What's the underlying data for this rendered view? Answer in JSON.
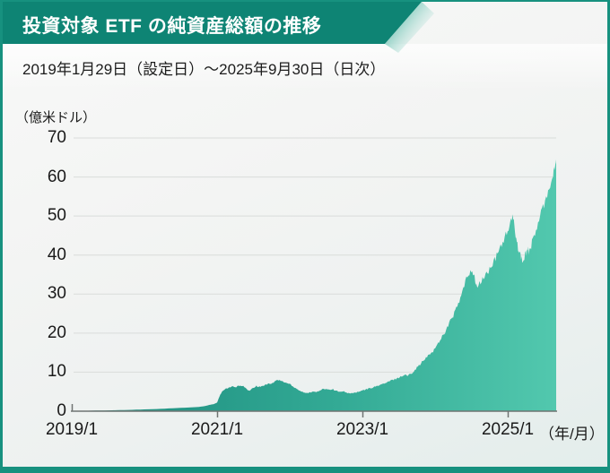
{
  "header": {
    "title": "投資対象 ETF の純資産総額の推移"
  },
  "subtitle": "2019年1月29日（設定日）〜2025年9月30日（日次）",
  "colors": {
    "banner_teal": "#0e8474",
    "frame_teal": "#17917f",
    "area_gradient_start": "#1a8a7c",
    "area_gradient_mid": "#33aa95",
    "area_gradient_end": "#52c8ae",
    "grid_line": "#d9dcda",
    "axis_line": "#6f7472",
    "text_dark": "#1a1a1a",
    "title_text": "#ffffff"
  },
  "chart_data": {
    "type": "area",
    "title": "投資対象 ETF の純資産総額の推移",
    "subtitle": "2019年1月29日（設定日）〜2025年9月30日（日次）",
    "y_unit": "（億米ドル）",
    "x_unit": "（年/月）",
    "ylim": [
      0,
      70
    ],
    "y_ticks": [
      0,
      10,
      20,
      30,
      40,
      50,
      60,
      70
    ],
    "x_range_months": [
      0,
      80
    ],
    "x_ticks": [
      {
        "label": "2019/1",
        "month": 0
      },
      {
        "label": "2021/1",
        "month": 24
      },
      {
        "label": "2023/1",
        "month": 48
      },
      {
        "label": "2025/1",
        "month": 72
      }
    ],
    "grid": true,
    "legend": false,
    "series": [
      {
        "points": [
          [
            0,
            0.05
          ],
          [
            2,
            0.1
          ],
          [
            4,
            0.15
          ],
          [
            6,
            0.2
          ],
          [
            8,
            0.28
          ],
          [
            10,
            0.35
          ],
          [
            12,
            0.45
          ],
          [
            14,
            0.55
          ],
          [
            16,
            0.7
          ],
          [
            18,
            0.85
          ],
          [
            20,
            1.0
          ],
          [
            21,
            1.1
          ],
          [
            22,
            1.3
          ],
          [
            22.7,
            1.6
          ],
          [
            23.4,
            1.8
          ],
          [
            24,
            2.2
          ],
          [
            24.4,
            3.8
          ],
          [
            24.8,
            5.0
          ],
          [
            25.2,
            5.6
          ],
          [
            26,
            6.0
          ],
          [
            26.5,
            6.3
          ],
          [
            27,
            6.1
          ],
          [
            27.5,
            6.4
          ],
          [
            28,
            6.6
          ],
          [
            28.5,
            6.3
          ],
          [
            29,
            5.4
          ],
          [
            29.4,
            5.2
          ],
          [
            30,
            6.0
          ],
          [
            30.5,
            6.4
          ],
          [
            31,
            6.2
          ],
          [
            31.5,
            6.5
          ],
          [
            32,
            6.8
          ],
          [
            32.5,
            7.2
          ],
          [
            33,
            7.0
          ],
          [
            33.5,
            7.6
          ],
          [
            34,
            8.0
          ],
          [
            34.5,
            7.8
          ],
          [
            35,
            7.5
          ],
          [
            35.5,
            7.2
          ],
          [
            36,
            7.0
          ],
          [
            36.5,
            6.4
          ],
          [
            37,
            5.9
          ],
          [
            37.5,
            5.4
          ],
          [
            38,
            5.0
          ],
          [
            38.5,
            4.7
          ],
          [
            39,
            4.6
          ],
          [
            39.5,
            4.9
          ],
          [
            40,
            5.1
          ],
          [
            40.5,
            4.9
          ],
          [
            41,
            5.3
          ],
          [
            41.5,
            5.6
          ],
          [
            42,
            5.8
          ],
          [
            42.5,
            5.5
          ],
          [
            43,
            5.7
          ],
          [
            43.5,
            5.3
          ],
          [
            44,
            5.1
          ],
          [
            44.5,
            4.9
          ],
          [
            45,
            5.0
          ],
          [
            45.5,
            4.7
          ],
          [
            46,
            4.5
          ],
          [
            46.5,
            4.7
          ],
          [
            47,
            4.8
          ],
          [
            47.5,
            5.0
          ],
          [
            48,
            5.3
          ],
          [
            48.5,
            5.5
          ],
          [
            49,
            5.8
          ],
          [
            49.5,
            6.0
          ],
          [
            50,
            6.2
          ],
          [
            50.5,
            6.5
          ],
          [
            51,
            6.8
          ],
          [
            51.5,
            7.0
          ],
          [
            52,
            7.3
          ],
          [
            52.5,
            7.7
          ],
          [
            53,
            8.0
          ],
          [
            53.5,
            8.3
          ],
          [
            54,
            8.6
          ],
          [
            54.5,
            9.0
          ],
          [
            55,
            9.3
          ],
          [
            55.5,
            9.1
          ],
          [
            56,
            9.6
          ],
          [
            56.5,
            10.4
          ],
          [
            57,
            11.2
          ],
          [
            57.5,
            12.0
          ],
          [
            58,
            12.8
          ],
          [
            58.5,
            13.6
          ],
          [
            59,
            14.4
          ],
          [
            59.5,
            15.2
          ],
          [
            60,
            16.0
          ],
          [
            60.5,
            17.4
          ],
          [
            61,
            18.8
          ],
          [
            61.5,
            20.0
          ],
          [
            62,
            21.4
          ],
          [
            62.5,
            23.0
          ],
          [
            63,
            24.6
          ],
          [
            63.5,
            26.2
          ],
          [
            64,
            28.0
          ],
          [
            64.5,
            30.5
          ],
          [
            65,
            33.0
          ],
          [
            65.5,
            35.0
          ],
          [
            66,
            36.5
          ],
          [
            66.4,
            34.8
          ],
          [
            66.7,
            33.0
          ],
          [
            67,
            31.5
          ],
          [
            67.5,
            33.0
          ],
          [
            68,
            34.2
          ],
          [
            68.5,
            35.2
          ],
          [
            69,
            36.2
          ],
          [
            69.5,
            37.6
          ],
          [
            70,
            39.0
          ],
          [
            70.5,
            41.0
          ],
          [
            71,
            43.0
          ],
          [
            71.5,
            44.5
          ],
          [
            72,
            46.0
          ],
          [
            72.4,
            48.0
          ],
          [
            72.8,
            49.6
          ],
          [
            73.1,
            47.5
          ],
          [
            73.4,
            44.5
          ],
          [
            73.7,
            42.0
          ],
          [
            74,
            40.5
          ],
          [
            74.3,
            39.2
          ],
          [
            74.6,
            38.4
          ],
          [
            75,
            40.2
          ],
          [
            75.3,
            41.8
          ],
          [
            75.6,
            40.8
          ],
          [
            76,
            43.0
          ],
          [
            76.5,
            45.5
          ],
          [
            77,
            48.0
          ],
          [
            77.5,
            50.5
          ],
          [
            78,
            53.0
          ],
          [
            78.5,
            55.5
          ],
          [
            79,
            58.0
          ],
          [
            79.5,
            61.0
          ],
          [
            79.8,
            62.8
          ],
          [
            80,
            64.5
          ]
        ]
      }
    ]
  }
}
